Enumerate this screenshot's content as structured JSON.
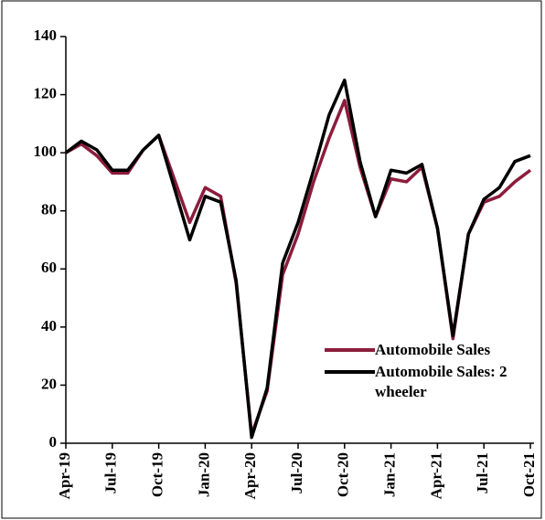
{
  "chart_data": {
    "type": "line",
    "categories": [
      "Apr-19",
      null,
      null,
      "Jul-19",
      null,
      null,
      "Oct-19",
      null,
      null,
      "Jan-20",
      null,
      null,
      "Apr-20",
      null,
      null,
      "Jul-20",
      null,
      null,
      "Oct-20",
      null,
      null,
      "Jan-21",
      null,
      null,
      "Apr-21",
      null,
      null,
      "Jul-21",
      null,
      null,
      "Oct-21"
    ],
    "series": [
      {
        "name": "Automobile Sales",
        "color": "#8c1c3c",
        "values": [
          100,
          103,
          99,
          93,
          93,
          101,
          106,
          91,
          76,
          88,
          85,
          55,
          3,
          18,
          58,
          72,
          90,
          105,
          118,
          95,
          78,
          91,
          90,
          95,
          74,
          36,
          72,
          83,
          85,
          90,
          94
        ]
      },
      {
        "name": "Automobile Sales: 2 wheeler",
        "color": "#000000",
        "values": [
          100,
          104,
          101,
          94,
          94,
          101,
          106,
          88,
          70,
          85,
          83,
          56,
          2,
          19,
          62,
          76,
          94,
          113,
          125,
          97,
          78,
          94,
          93,
          96,
          74,
          37,
          72,
          84,
          88,
          97,
          99
        ]
      }
    ],
    "ylim": [
      0,
      140
    ],
    "yticks": [
      0,
      20,
      40,
      60,
      80,
      100,
      120,
      140
    ],
    "grid": false,
    "legend": "lower right"
  }
}
